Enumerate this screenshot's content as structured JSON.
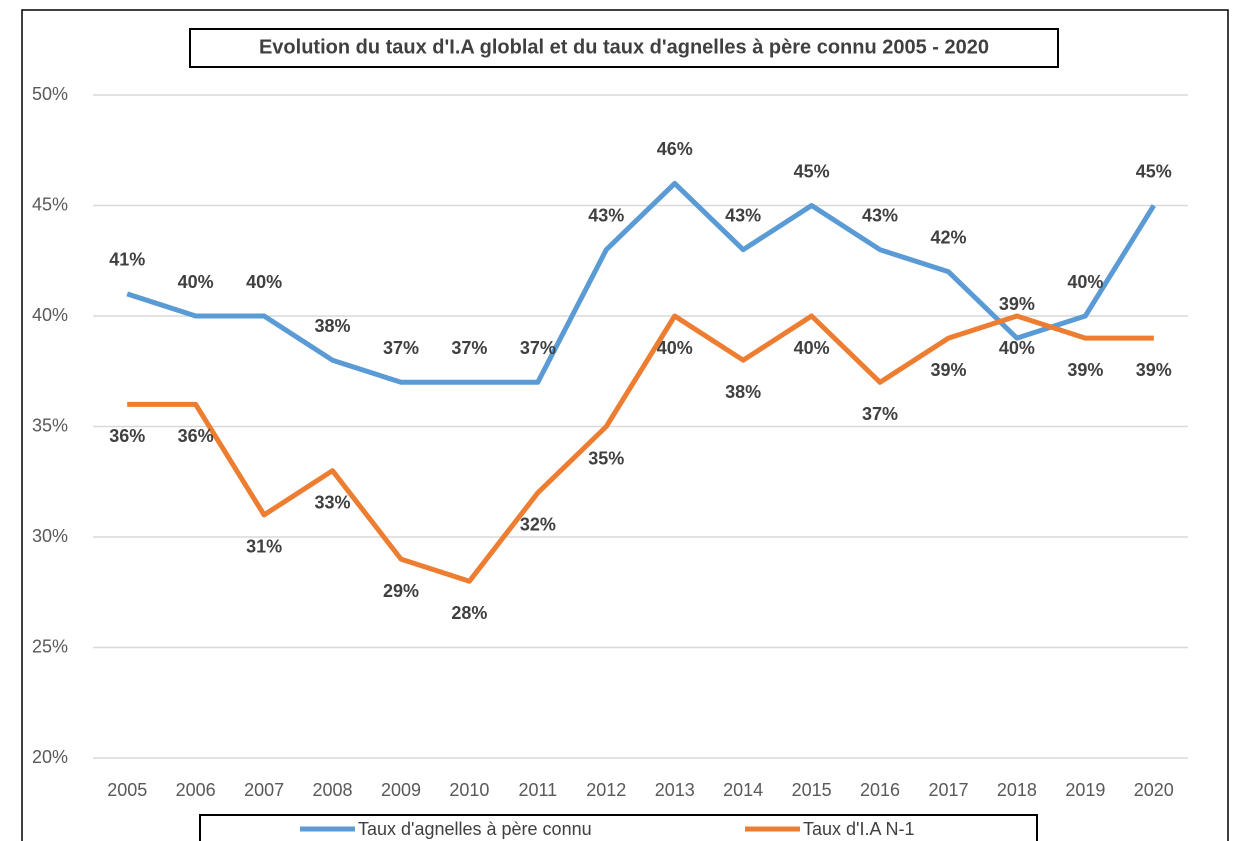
{
  "chart_data": {
    "type": "line",
    "title": "Evolution du taux d'I.A globlal et du taux d'agnelles à père connu 2005 - 2020",
    "categories": [
      "2005",
      "2006",
      "2007",
      "2008",
      "2009",
      "2010",
      "2011",
      "2012",
      "2013",
      "2014",
      "2015",
      "2016",
      "2017",
      "2018",
      "2019",
      "2020"
    ],
    "series": [
      {
        "name": "Taux d'agnelles à père connu",
        "color": "#5b9bd5",
        "values": [
          41,
          40,
          40,
          38,
          37,
          37,
          37,
          43,
          46,
          43,
          45,
          43,
          42,
          39,
          40,
          45
        ],
        "value_labels": [
          "41%",
          "40%",
          "40%",
          "38%",
          "37%",
          "37%",
          "37%",
          "43%",
          "46%",
          "43%",
          "45%",
          "43%",
          "42%",
          "39%",
          "40%",
          "45%"
        ]
      },
      {
        "name": "Taux d'I.A N-1",
        "color": "#ed7d31",
        "values": [
          36,
          36,
          31,
          33,
          29,
          28,
          32,
          35,
          40,
          38,
          40,
          37,
          39,
          40,
          39,
          39
        ],
        "value_labels": [
          "36%",
          "36%",
          "31%",
          "33%",
          "29%",
          "28%",
          "32%",
          "35%",
          "40%",
          "38%",
          "40%",
          "37%",
          "39%",
          "40%",
          "39%",
          "39%"
        ]
      }
    ],
    "ylim": [
      20,
      50
    ],
    "yticks": [
      {
        "value": 20,
        "label": "20%"
      },
      {
        "value": 25,
        "label": "25%"
      },
      {
        "value": 30,
        "label": "30%"
      },
      {
        "value": 35,
        "label": "35%"
      },
      {
        "value": 40,
        "label": "40%"
      },
      {
        "value": 45,
        "label": "45%"
      },
      {
        "value": 50,
        "label": "50%"
      }
    ],
    "grid": true,
    "legend": "bottom"
  }
}
